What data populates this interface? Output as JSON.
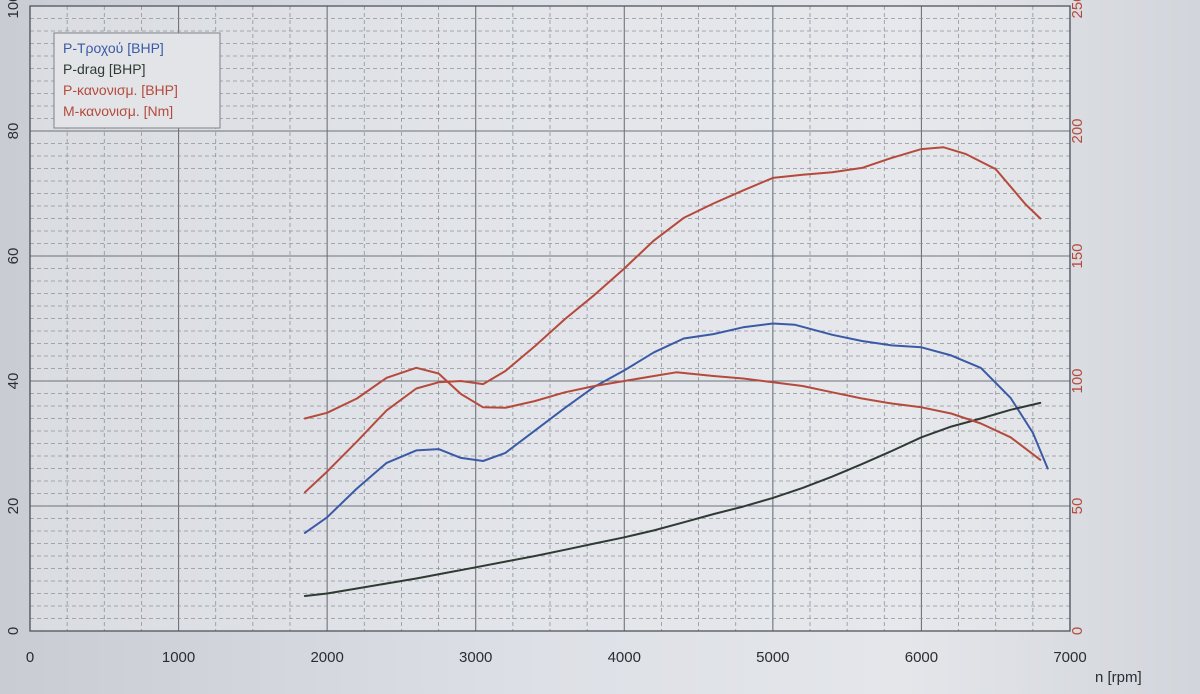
{
  "chart_data": {
    "type": "line",
    "xlabel": "n [rpm]",
    "xlim": [
      0,
      7000
    ],
    "x_ticks": [
      0,
      1000,
      2000,
      3000,
      4000,
      5000,
      6000,
      7000
    ],
    "x_tick_labels": [
      "0",
      "1000",
      "2000",
      "3000",
      "4000",
      "5000",
      "6000",
      "7000"
    ],
    "y_left": {
      "lim": [
        0,
        100
      ],
      "ticks": [
        "0",
        "20",
        "40",
        "60",
        "80",
        "100"
      ]
    },
    "y_right": {
      "lim": [
        0,
        250
      ],
      "ticks": [
        "0",
        "50",
        "100",
        "150",
        "200",
        "250"
      ]
    },
    "grid": true,
    "legend_position": "top-left",
    "series": [
      {
        "name": "P-Τροχού [BHP]",
        "color": "#3b5aa6",
        "axis": "left",
        "x": [
          1850,
          2000,
          2200,
          2400,
          2600,
          2750,
          2900,
          3050,
          3200,
          3400,
          3600,
          3800,
          4000,
          4200,
          4400,
          4600,
          4800,
          5000,
          5150,
          5400,
          5600,
          5800,
          6000,
          6200,
          6400,
          6600,
          6750,
          6850
        ],
        "y": [
          15.7,
          18.2,
          22.8,
          26.9,
          28.9,
          29.1,
          27.7,
          27.2,
          28.5,
          32.1,
          35.7,
          39.1,
          41.7,
          44.6,
          46.8,
          47.5,
          48.6,
          49.2,
          49.0,
          47.4,
          46.4,
          45.7,
          45.4,
          44.1,
          42.1,
          37.3,
          31.7,
          26.0
        ]
      },
      {
        "name": "P-drag [BHP]",
        "color": "#2e3a33",
        "axis": "left",
        "x": [
          1850,
          2000,
          2200,
          2400,
          2600,
          2800,
          3000,
          3200,
          3400,
          3600,
          3800,
          4000,
          4200,
          4400,
          4600,
          4800,
          5000,
          5200,
          5400,
          5600,
          5800,
          6000,
          6200,
          6400,
          6600,
          6800
        ],
        "y": [
          5.6,
          6.0,
          6.8,
          7.6,
          8.4,
          9.3,
          10.2,
          11.1,
          12.0,
          13.0,
          14.0,
          15.0,
          16.1,
          17.4,
          18.7,
          19.9,
          21.3,
          22.9,
          24.7,
          26.7,
          28.8,
          31.0,
          32.7,
          34.0,
          35.4,
          36.5
        ]
      },
      {
        "name": "P-κανονισμ. [BHP]",
        "color": "#b54a3c",
        "axis": "left",
        "x": [
          1850,
          2000,
          2200,
          2400,
          2600,
          2750,
          2900,
          3050,
          3200,
          3400,
          3600,
          3800,
          4000,
          4200,
          4400,
          4600,
          4800,
          5000,
          5200,
          5400,
          5600,
          5800,
          6000,
          6150,
          6300,
          6500,
          6700,
          6800
        ],
        "y": [
          22.2,
          25.5,
          30.3,
          35.3,
          38.8,
          39.8,
          40.0,
          39.5,
          41.6,
          45.6,
          49.9,
          53.8,
          58.0,
          62.5,
          66.1,
          68.4,
          70.5,
          72.5,
          73.0,
          73.4,
          74.1,
          75.7,
          77.1,
          77.4,
          76.3,
          73.9,
          68.3,
          66.0
        ]
      },
      {
        "name": "M-κανονισμ. [Nm]",
        "color": "#b54a3c",
        "axis": "right",
        "x": [
          1850,
          2000,
          2200,
          2400,
          2600,
          2750,
          2900,
          3050,
          3200,
          3400,
          3600,
          3800,
          4000,
          4200,
          4350,
          4600,
          4800,
          5000,
          5200,
          5400,
          5600,
          5800,
          6000,
          6200,
          6400,
          6600,
          6800
        ],
        "y": [
          85.0,
          87.3,
          93.0,
          101.3,
          105.3,
          103.0,
          94.8,
          89.5,
          89.3,
          92.0,
          95.5,
          98.0,
          100.0,
          102.0,
          103.5,
          102.0,
          101.0,
          99.5,
          98.0,
          95.5,
          93.0,
          91.0,
          89.5,
          87.0,
          83.0,
          77.5,
          68.5
        ]
      }
    ]
  }
}
